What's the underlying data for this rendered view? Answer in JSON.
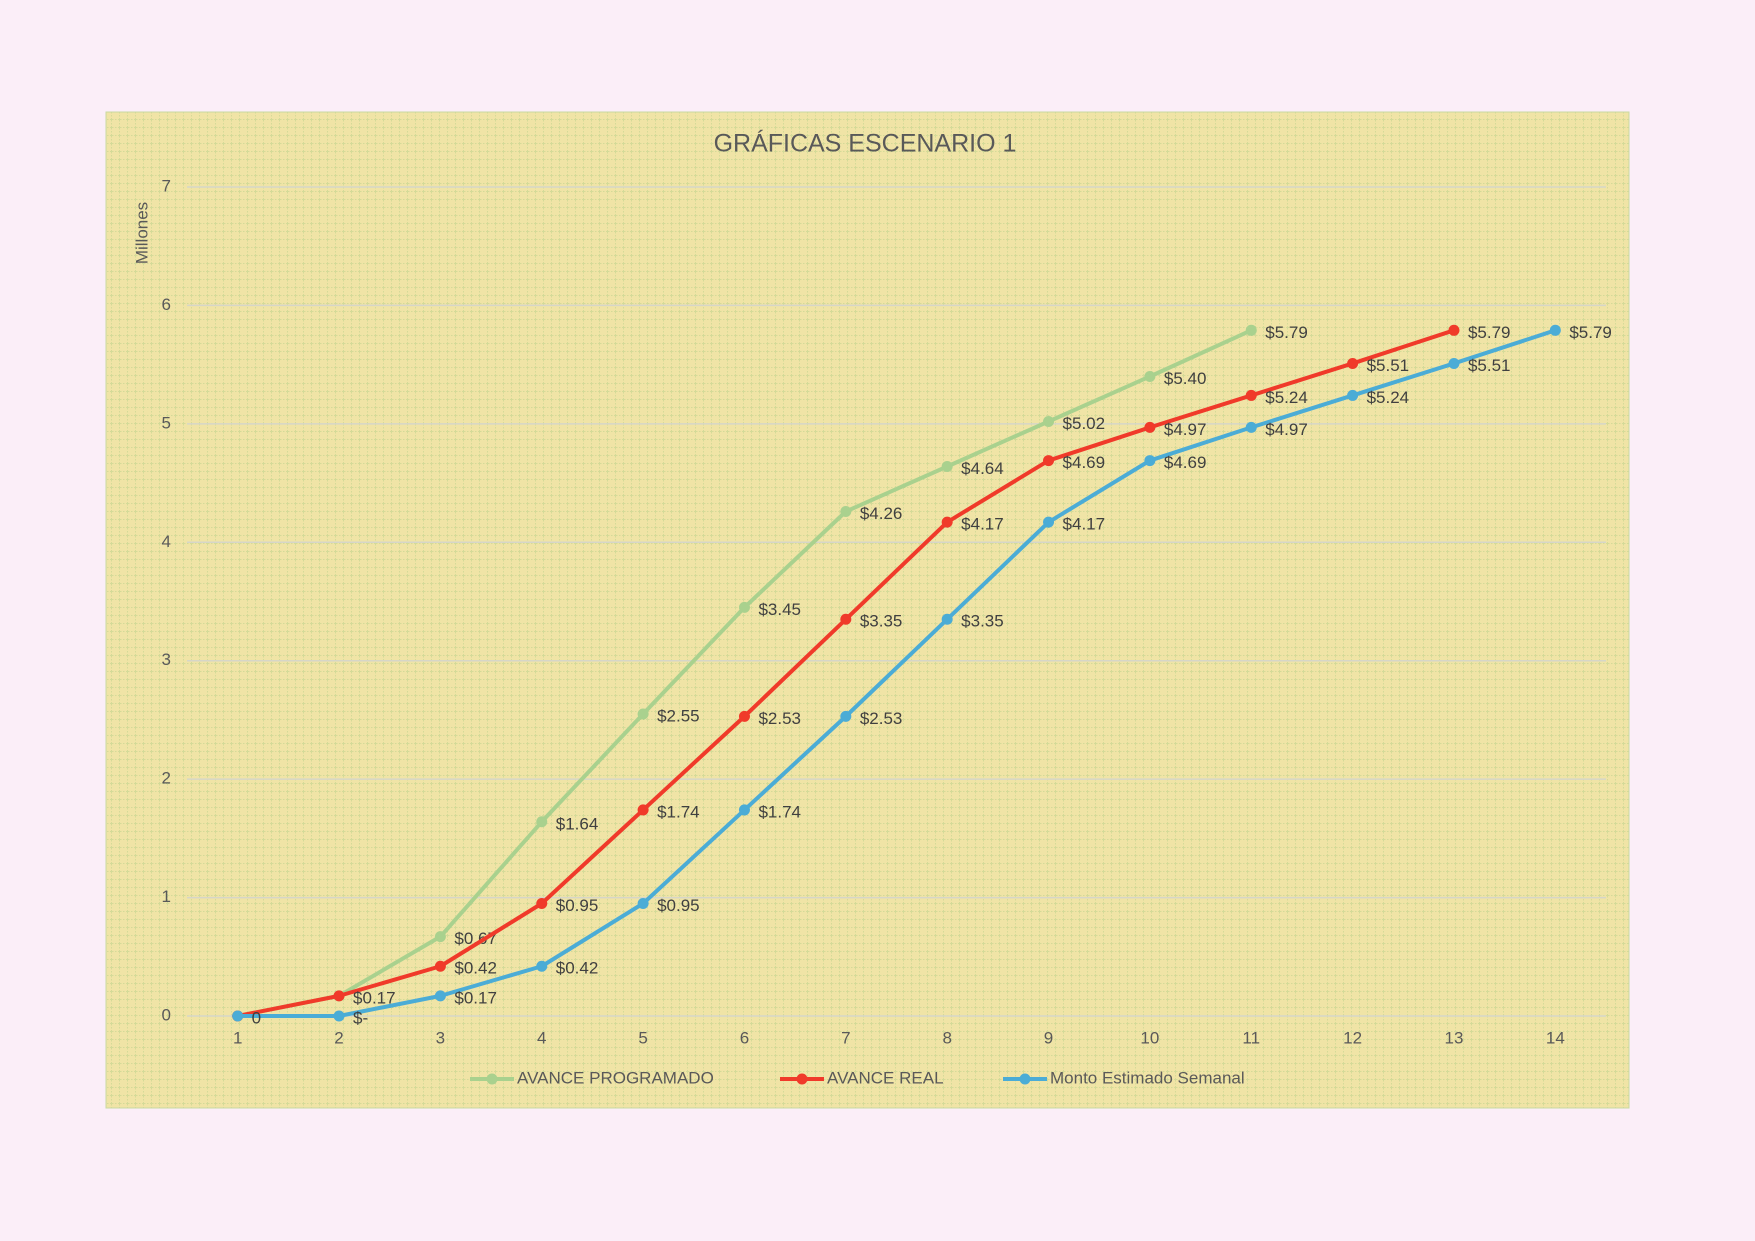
{
  "chart_data": {
    "type": "line",
    "title": "GRÁFICAS ESCENARIO 1",
    "y_label": "Millones",
    "categories": [
      "1",
      "2",
      "3",
      "4",
      "5",
      "6",
      "7",
      "8",
      "9",
      "10",
      "11",
      "12",
      "13",
      "14"
    ],
    "ylim": [
      0,
      7
    ],
    "yticks": [
      0,
      1,
      2,
      3,
      4,
      5,
      6,
      7
    ],
    "grid": true,
    "legend": "bottom",
    "series": [
      {
        "name": "AVANCE PROGRAMADO",
        "color": "#a9d18e",
        "values": [
          0,
          0.17,
          0.67,
          1.64,
          2.55,
          3.45,
          4.26,
          4.64,
          5.02,
          5.4,
          5.79,
          null,
          null,
          null
        ],
        "value_labels": [
          null,
          null,
          "$0.67",
          "$1.64",
          "$2.55",
          "$3.45",
          "$4.26",
          "$4.64",
          "$5.02",
          "$5.40",
          "$5.79",
          null,
          null,
          null
        ]
      },
      {
        "name": "AVANCE REAL",
        "color": "#f03a2a",
        "values": [
          0,
          0.17,
          0.42,
          0.95,
          1.74,
          2.53,
          3.35,
          4.17,
          4.69,
          4.97,
          5.24,
          5.51,
          5.79,
          null
        ],
        "value_labels": [
          null,
          "$0.17",
          "$0.42",
          "$0.95",
          "$1.74",
          "$2.53",
          "$3.35",
          "$4.17",
          "$4.69",
          "$4.97",
          "$5.24",
          "$5.51",
          "$5.79",
          null
        ]
      },
      {
        "name": "Monto Estimado Semanal",
        "color": "#4bacd6",
        "values": [
          0,
          0,
          0.17,
          0.42,
          0.95,
          1.74,
          2.53,
          3.35,
          4.17,
          4.69,
          4.97,
          5.24,
          5.51,
          5.79
        ],
        "value_labels": [
          "0",
          "$-",
          "$0.17",
          "$0.42",
          "$0.95",
          "$1.74",
          "$2.53",
          "$3.35",
          "$4.17",
          "$4.69",
          "$4.97",
          "$5.24",
          "$5.51",
          "$5.79"
        ]
      }
    ]
  }
}
